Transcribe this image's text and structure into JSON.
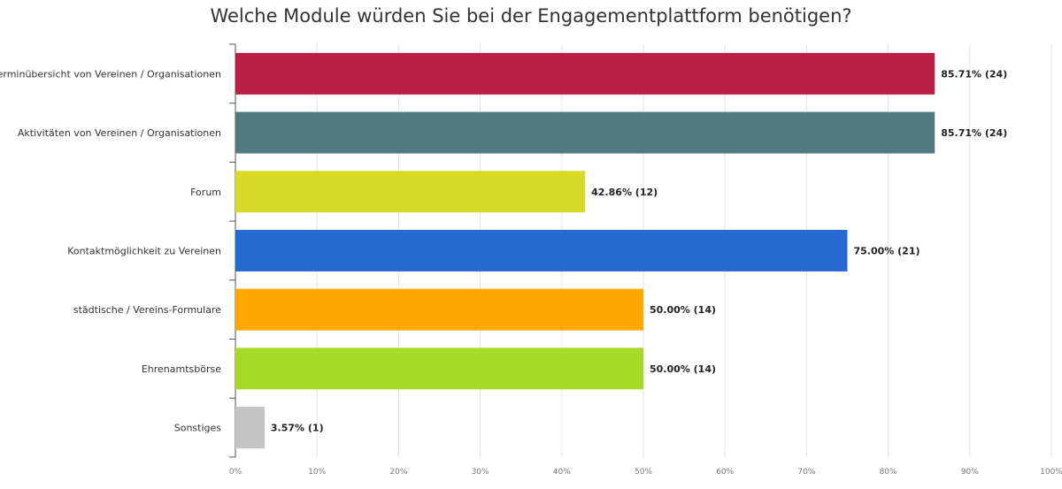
{
  "chart_data": {
    "type": "bar",
    "orientation": "horizontal",
    "title": "Welche Module würden Sie bei der Engagementplattform benötigen?",
    "categories": [
      "Terminübersicht von Vereinen / Organisationen",
      "Aktivitäten von Vereinen / Organisationen",
      "Forum",
      "Kontaktmöglichkeit zu Vereinen",
      "städtische / Vereins-Formulare",
      "Ehrenamtsbörse",
      "Sonstiges"
    ],
    "values": [
      85.71,
      85.71,
      42.86,
      75.0,
      50.0,
      50.0,
      3.57
    ],
    "counts": [
      24,
      24,
      12,
      21,
      14,
      14,
      1
    ],
    "value_labels": [
      "85.71% (24)",
      "85.71% (24)",
      "42.86% (12)",
      "75.00% (21)",
      "50.00% (14)",
      "50.00% (14)",
      "3.57% (1)"
    ],
    "colors": [
      "#b91f44",
      "#4f7b80",
      "#d8d928",
      "#256bcf",
      "#fca800",
      "#a6d928",
      "#c4c4c4"
    ],
    "xlim": [
      0,
      100
    ],
    "x_ticks": [
      "0%",
      "10%",
      "20%",
      "30%",
      "40%",
      "50%",
      "60%",
      "70%",
      "80%",
      "90%",
      "100%"
    ],
    "grid": true,
    "legend": "none"
  }
}
